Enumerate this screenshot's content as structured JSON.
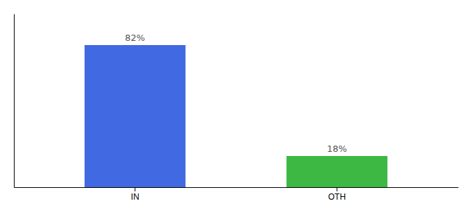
{
  "chart_data": {
    "type": "bar",
    "categories": [
      "IN",
      "OTH"
    ],
    "values": [
      82,
      18
    ],
    "value_labels": [
      "82%",
      "18%"
    ],
    "colors": [
      "#4169e1",
      "#3cb843"
    ],
    "ylim": [
      0,
      100
    ],
    "data_labels": true,
    "tick_labels": "x",
    "grid": false
  }
}
